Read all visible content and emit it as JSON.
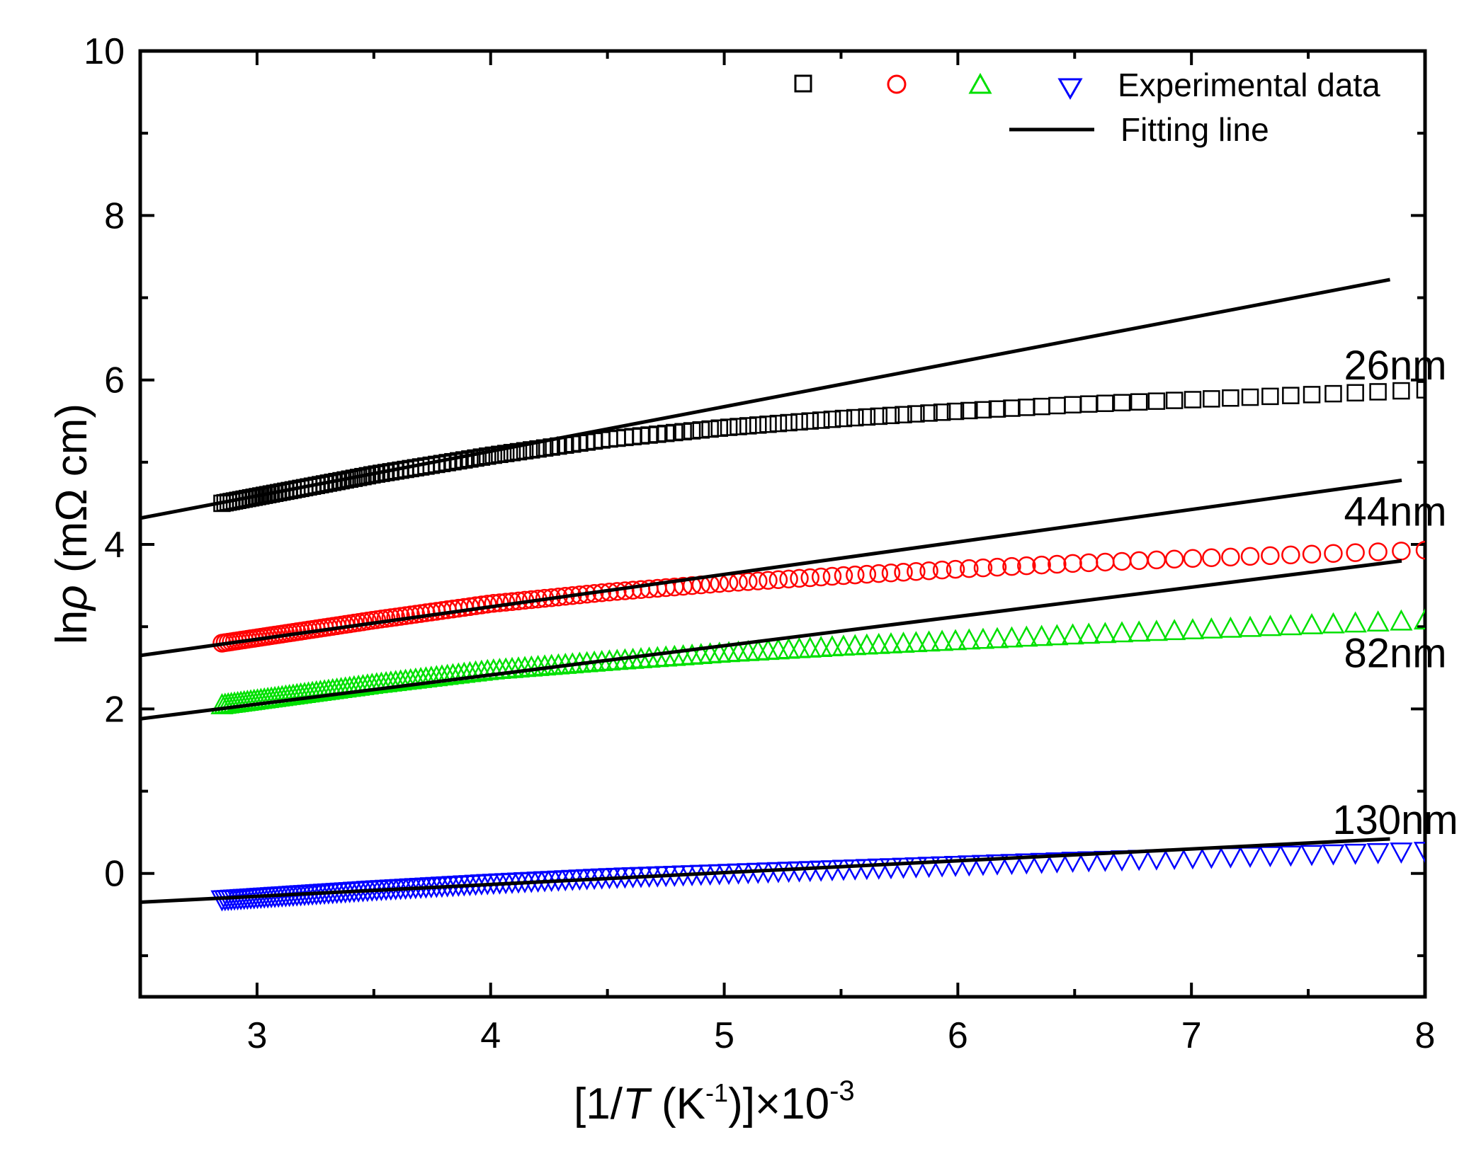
{
  "chart_data": {
    "type": "scatter",
    "title": "",
    "xlabel": {
      "prefix": "[1/",
      "italic": "T",
      "mid": " (K",
      "sup": "-1",
      "suffix": ")]×10",
      "exp": "-3"
    },
    "ylabel": {
      "prefix": "ln",
      "symbol": "ρ",
      "unit": " (mΩ cm)"
    },
    "xlim": [
      2.5,
      8
    ],
    "ylim": [
      -1.5,
      10
    ],
    "xticks": [
      "3",
      "4",
      "5",
      "6",
      "7",
      "8"
    ],
    "yticks": [
      "0",
      "2",
      "4",
      "6",
      "8",
      "10"
    ],
    "legend": {
      "position": "top-right",
      "experimental_label": "Experimental data",
      "fitting_label": "Fitting line"
    },
    "series": [
      {
        "name": "26nm",
        "marker": "square",
        "color": "#000000",
        "x_start": 2.85,
        "x_end": 8.0,
        "points": [
          [
            2.85,
            4.5
          ],
          [
            3.5,
            4.85
          ],
          [
            4.0,
            5.08
          ],
          [
            4.5,
            5.28
          ],
          [
            5.0,
            5.42
          ],
          [
            5.5,
            5.53
          ],
          [
            6.0,
            5.62
          ],
          [
            6.5,
            5.7
          ],
          [
            7.0,
            5.76
          ],
          [
            7.5,
            5.82
          ],
          [
            8.0,
            5.88
          ]
        ],
        "fit": {
          "x": [
            2.5,
            7.85
          ],
          "y": [
            4.32,
            7.22
          ]
        },
        "label_pos": [
          7.6,
          6.18
        ]
      },
      {
        "name": "44nm",
        "marker": "circle",
        "color": "#ff0000",
        "x_start": 2.85,
        "x_end": 8.0,
        "points": [
          [
            2.85,
            2.8
          ],
          [
            3.5,
            3.08
          ],
          [
            4.0,
            3.28
          ],
          [
            4.5,
            3.42
          ],
          [
            5.0,
            3.53
          ],
          [
            5.5,
            3.62
          ],
          [
            6.0,
            3.7
          ],
          [
            6.5,
            3.77
          ],
          [
            7.0,
            3.83
          ],
          [
            7.5,
            3.88
          ],
          [
            8.0,
            3.93
          ]
        ],
        "fit": {
          "x": [
            2.5,
            7.9
          ],
          "y": [
            2.65,
            4.78
          ]
        },
        "label_pos": [
          7.6,
          4.4
        ]
      },
      {
        "name": "82nm",
        "marker": "triangle-up",
        "color": "#00e000",
        "x_start": 2.85,
        "x_end": 8.0,
        "points": [
          [
            2.85,
            2.05
          ],
          [
            3.5,
            2.3
          ],
          [
            4.0,
            2.47
          ],
          [
            4.5,
            2.58
          ],
          [
            5.0,
            2.68
          ],
          [
            5.5,
            2.76
          ],
          [
            6.0,
            2.83
          ],
          [
            6.5,
            2.9
          ],
          [
            7.0,
            2.96
          ],
          [
            7.5,
            3.02
          ],
          [
            8.0,
            3.08
          ]
        ],
        "fit": {
          "x": [
            2.5,
            7.9
          ],
          "y": [
            1.88,
            3.8
          ]
        },
        "label_pos": [
          7.6,
          2.68
        ]
      },
      {
        "name": "130nm",
        "marker": "triangle-down",
        "color": "#0000ff",
        "x_start": 2.85,
        "x_end": 8.0,
        "points": [
          [
            2.85,
            -0.32
          ],
          [
            3.5,
            -0.2
          ],
          [
            4.0,
            -0.12
          ],
          [
            4.5,
            -0.05
          ],
          [
            5.0,
            0.0
          ],
          [
            5.5,
            0.05
          ],
          [
            6.0,
            0.1
          ],
          [
            6.5,
            0.15
          ],
          [
            7.0,
            0.19
          ],
          [
            7.5,
            0.23
          ],
          [
            8.0,
            0.27
          ]
        ],
        "fit": {
          "x": [
            2.5,
            7.85
          ],
          "y": [
            -0.35,
            0.42
          ]
        },
        "label_pos": [
          7.6,
          0.65
        ]
      }
    ]
  }
}
